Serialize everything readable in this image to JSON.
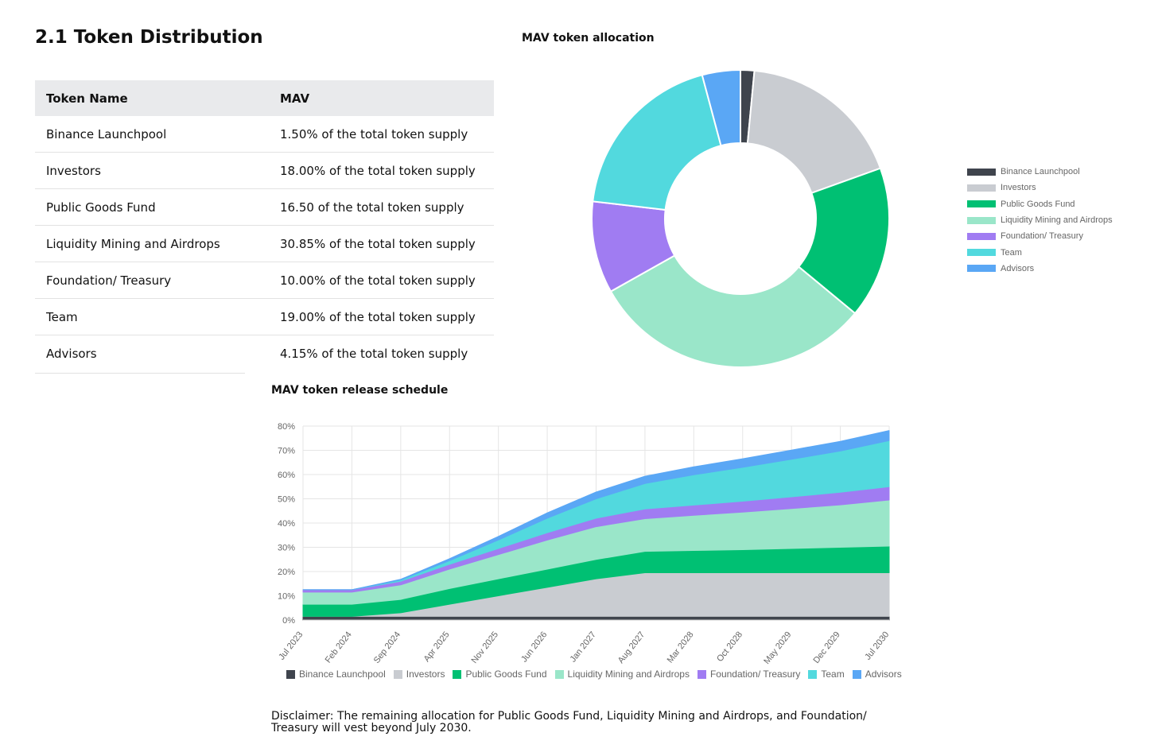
{
  "section_title": "2.1 Token Distribution",
  "table": {
    "headers": [
      "Token Name",
      "MAV"
    ],
    "rows": [
      [
        "Binance Launchpool",
        "1.50% of the total token supply"
      ],
      [
        "Investors",
        "18.00% of the total token supply"
      ],
      [
        "Public Goods Fund",
        "16.50 of the total token supply"
      ],
      [
        "Liquidity Mining and Airdrops",
        "30.85% of the total token supply"
      ],
      [
        "Foundation/ Treasury",
        "10.00% of the total token supply"
      ],
      [
        "Team",
        "19.00% of the total token supply"
      ],
      [
        "Advisors",
        "4.15% of the total token supply"
      ]
    ]
  },
  "colors": {
    "binance": "#3f444d",
    "investors": "#c9ccd1",
    "public_goods": "#00c073",
    "liquidity": "#9ae6c9",
    "foundation": "#a07cf2",
    "team": "#52d9de",
    "advisors": "#5aa7f5"
  },
  "chart_data": [
    {
      "type": "pie",
      "title": "MAV token allocation",
      "legend_position": "right",
      "donut": true,
      "categories": [
        "Binance Launchpool",
        "Investors",
        "Public Goods Fund",
        "Liquidity Mining and Airdrops",
        "Foundation/ Treasury",
        "Team",
        "Advisors"
      ],
      "values": [
        1.5,
        18.0,
        16.5,
        30.85,
        10.0,
        19.0,
        4.15
      ]
    },
    {
      "type": "area",
      "stacked": true,
      "title": "MAV token release schedule",
      "legend_position": "bottom",
      "grid": true,
      "x_ticks": [
        "Jul 2023",
        "Feb 2024",
        "Sep 2024",
        "Apr 2025",
        "Nov 2025",
        "Jun 2026",
        "Jan 2027",
        "Aug 2027",
        "Mar 2028",
        "Oct 2028",
        "May 2029",
        "Dec 2029",
        "Jul 2030"
      ],
      "y_ticks": [
        "0%",
        "10%",
        "20%",
        "30%",
        "40%",
        "50%",
        "60%",
        "70%",
        "80%"
      ],
      "ylim": [
        0,
        80
      ],
      "x": [
        "Jul 2023",
        "Feb 2024",
        "Sep 2024",
        "Apr 2025",
        "Nov 2025",
        "Jun 2026",
        "Jan 2027",
        "Aug 2027",
        "Mar 2028",
        "Oct 2028",
        "May 2029",
        "Dec 2029",
        "Jul 2030"
      ],
      "series": [
        {
          "name": "Binance Launchpool",
          "values": [
            1.5,
            1.5,
            1.5,
            1.5,
            1.5,
            1.5,
            1.5,
            1.5,
            1.5,
            1.5,
            1.5,
            1.5,
            1.5
          ]
        },
        {
          "name": "Investors",
          "values": [
            0,
            0,
            1.5,
            5.0,
            8.5,
            12.0,
            15.5,
            18.0,
            18.0,
            18.0,
            18.0,
            18.0,
            18.0
          ]
        },
        {
          "name": "Public Goods Fund",
          "values": [
            5.0,
            5.0,
            5.5,
            6.5,
            7.0,
            7.5,
            8.0,
            8.8,
            9.2,
            9.5,
            10.0,
            10.5,
            11.0
          ]
        },
        {
          "name": "Liquidity Mining and Airdrops",
          "values": [
            5.0,
            5.0,
            6.0,
            8.0,
            10.0,
            12.0,
            13.5,
            13.5,
            14.5,
            15.5,
            16.5,
            17.5,
            19.0
          ]
        },
        {
          "name": "Foundation/ Treasury",
          "values": [
            1.0,
            1.0,
            1.5,
            2.0,
            2.5,
            3.0,
            3.5,
            4.0,
            4.2,
            4.5,
            4.8,
            5.2,
            5.5
          ]
        },
        {
          "name": "Team",
          "values": [
            0,
            0,
            0.5,
            1.5,
            3.5,
            6.0,
            8.0,
            10.5,
            12.5,
            14.0,
            15.5,
            17.0,
            19.0
          ]
        },
        {
          "name": "Advisors",
          "values": [
            0,
            0,
            0.3,
            0.8,
            1.5,
            2.2,
            2.8,
            3.0,
            3.3,
            3.5,
            3.8,
            4.0,
            4.15
          ]
        }
      ]
    }
  ],
  "disclaimer": "Disclaimer: The remaining allocation for Public Goods Fund, Liquidity Mining and Airdrops, and Foundation/ Treasury will vest beyond July 2030."
}
